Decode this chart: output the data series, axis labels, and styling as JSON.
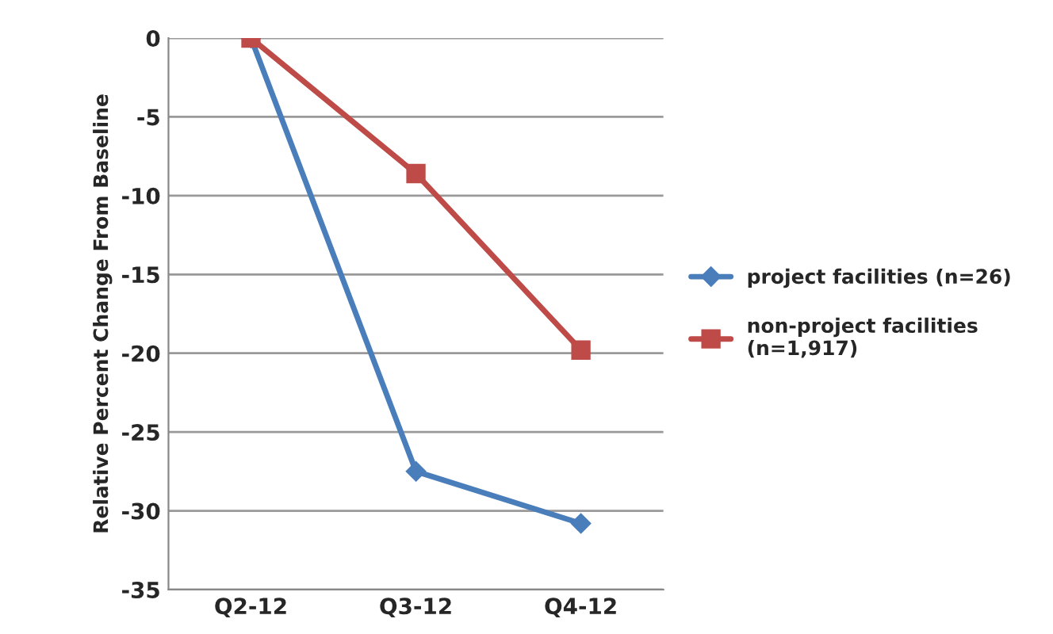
{
  "chart_data": {
    "type": "line",
    "ylabel": "Relative Percent Change From Baseline",
    "categories": [
      "Q2-12",
      "Q3-12",
      "Q4-12"
    ],
    "series": [
      {
        "name": "project facilities (n=26)",
        "color": "#4a7ebb",
        "marker": "diamond",
        "values": [
          0,
          -27.5,
          -30.8
        ]
      },
      {
        "name": "non-project facilities\n(n=1,917)",
        "color": "#be4b48",
        "marker": "square",
        "values": [
          0,
          -8.6,
          -19.8
        ]
      }
    ],
    "ylim": [
      -35,
      0
    ],
    "yticks": [
      -35,
      -30,
      -25,
      -20,
      -15,
      -10,
      -5,
      0
    ],
    "grid": "y",
    "legend": "right"
  }
}
